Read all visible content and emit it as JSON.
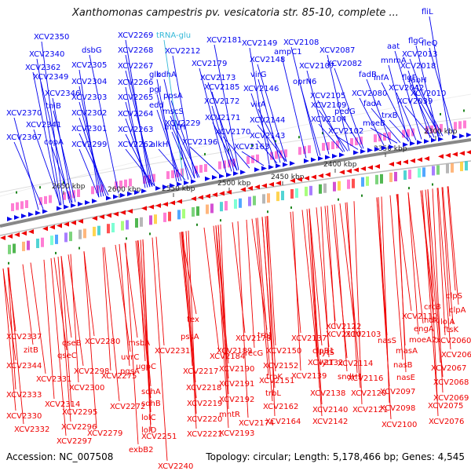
{
  "title": "Xanthomonas campestris pv. vesicatoria str. 85-10, complete ...",
  "footer": {
    "accession": "Accession: NC_007508",
    "stats": "Topology: circular; Length: 5,178,466 bp; Genes: 4,545"
  },
  "colors": {
    "forward": "#0000ee",
    "reverse": "#ee0000",
    "trna": "#33b8d8",
    "backbone": "#888888",
    "tick": "#228822"
  },
  "ruler": [
    "2300 kbp",
    "2350 kbp",
    "2400 kbp",
    "2450 kbp",
    "2500 kbp",
    "2550 kbp",
    "2600 kbp",
    "2650 kbp"
  ],
  "top_labels": [
    "fliL",
    "flgC",
    "fleQ",
    "aat",
    "XCV2013",
    "mnmA",
    "XCV2018",
    "flgF",
    "fabH",
    "infA",
    "XCV2042",
    "XCV2010",
    "fadB",
    "XCV2039",
    "fadA",
    "trxB",
    "XCV2087",
    "XCV2080",
    "moeB",
    "XCV2082",
    "pedG",
    "XCV2102",
    "XCV2104",
    "XCV2105",
    "XCV2109",
    "oprN6",
    "XCV2107",
    "ampC1",
    "XCV2108",
    "XCV2148",
    "XCV2149",
    "virG",
    "XCV2146",
    "virA",
    "XCV2144",
    "XCV2143",
    "XCV2163",
    "XCV2181",
    "XCV2179",
    "XCV2173",
    "XCV2172",
    "XCV2185",
    "XCV2171",
    "XCV2170",
    "XCV2196",
    "tRNA-glu",
    "XCV2212",
    "bdhA",
    "ppsA",
    "mscS",
    "mntH",
    "XCV2229",
    "XCV2269",
    "XCV2268",
    "XCV2267",
    "XCV2266",
    "XCV2265",
    "XCV2264",
    "XCV2263",
    "XCV2262",
    "glk",
    "pgl",
    "edd",
    "alkH",
    "dsbG",
    "XCV2305",
    "XCV2304",
    "XCV2303",
    "XCV2302",
    "XCV2301",
    "XCV2299",
    "XCV2350",
    "XCV2340",
    "XCV2362",
    "XCV2349",
    "XCV2346",
    "tniB",
    "XCV2370",
    "XCV2341",
    "XCV2367",
    "copA"
  ],
  "bottom_labels": [
    "clpS",
    "clpA",
    "crcB",
    "XCV2110",
    "lolA",
    "ftsK",
    "ndk",
    "engA",
    "XCV2060",
    "moeA2",
    "XCV2062",
    "XCV2067",
    "masA",
    "nasS",
    "nasB",
    "XCV2068",
    "nasE",
    "XCV2069",
    "XCV2097",
    "XCV2075",
    "XCV2098",
    "XCV2076",
    "XCV2100",
    "XCV2103",
    "XCV2110",
    "XCV2122",
    "lytS",
    "XCV2114",
    "lytT",
    "XCV2116",
    "sndH1",
    "XCV2120",
    "XCV2121",
    "XCV2137",
    "clpB1",
    "XCV2132",
    "XCV2139",
    "XCV2138",
    "XCV2140",
    "XCV2142",
    "XCV2150",
    "XCV2152",
    "XCV2151",
    "trbJ",
    "recG",
    "trbK",
    "trbL",
    "XCV2162",
    "XCV2164",
    "XCV2174",
    "XCV2178",
    "XCV2184",
    "XCV2189",
    "pssA",
    "XCV2190",
    "XCV2191",
    "XCV2192",
    "mntR",
    "XCV2193",
    "tex",
    "XCV2231",
    "XCV2217",
    "XCV2218",
    "XCV2219",
    "XCV2220",
    "XCV2221",
    "msbA",
    "uvrC",
    "ugpC",
    "pgsA",
    "sdhA",
    "sdhB",
    "lolC",
    "lolD",
    "exbB2",
    "XCV2240",
    "XCV2251",
    "XCV2280",
    "XCV2279",
    "XCV2272",
    "XCV2275",
    "qseB",
    "qseC",
    "XCV2298",
    "XCV2300",
    "XCV2295",
    "XCV2296",
    "XCV2297",
    "XCV2337",
    "zitB",
    "XCV2344",
    "XCV2331",
    "XCV2333",
    "XCV2314",
    "XCV2330",
    "XCV2332"
  ]
}
